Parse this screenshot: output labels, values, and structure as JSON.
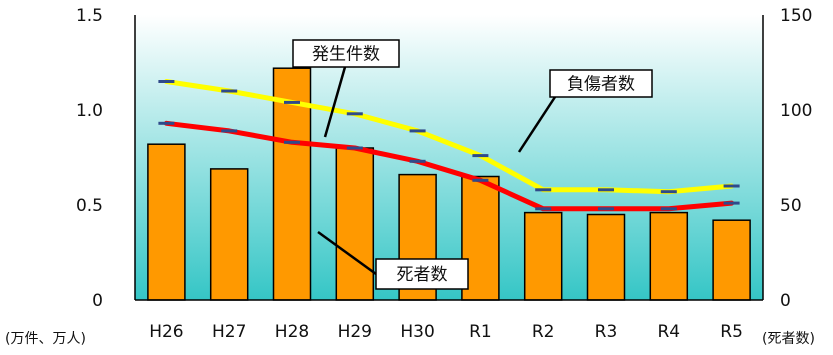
{
  "chart_data": {
    "type": "bar+line",
    "categories": [
      "H26",
      "H27",
      "H28",
      "H29",
      "H30",
      "R1",
      "R2",
      "R3",
      "R4",
      "R5"
    ],
    "left_axis": {
      "ticks": [
        "0",
        "0.5",
        "1.0",
        "1.5"
      ],
      "range": [
        0,
        1.5
      ],
      "unit_label": "(万件、万人)"
    },
    "right_axis": {
      "ticks": [
        "0",
        "50",
        "100",
        "150"
      ],
      "range": [
        0,
        150
      ],
      "unit_label": "(死者数)"
    },
    "series": [
      {
        "name": "発生件数",
        "kind": "bar",
        "axis": "left",
        "color": "#FF9900",
        "values": [
          0.82,
          0.69,
          1.22,
          0.8,
          0.66,
          0.65,
          0.46,
          0.45,
          0.46,
          0.42
        ]
      },
      {
        "name": "負傷者数",
        "kind": "line",
        "axis": "left",
        "color": "#FFFF00",
        "values": [
          1.15,
          1.1,
          1.04,
          0.98,
          0.89,
          0.76,
          0.58,
          0.58,
          0.57,
          0.6
        ]
      },
      {
        "name": "死者数",
        "kind": "line",
        "axis": "right",
        "color": "#FF0000",
        "values": [
          93,
          89,
          83,
          80,
          73,
          63,
          48,
          48,
          48,
          51
        ]
      }
    ],
    "grid": false,
    "legend": "callouts",
    "background_gradient": [
      "#FFFFFF",
      "#35C6C6"
    ]
  }
}
